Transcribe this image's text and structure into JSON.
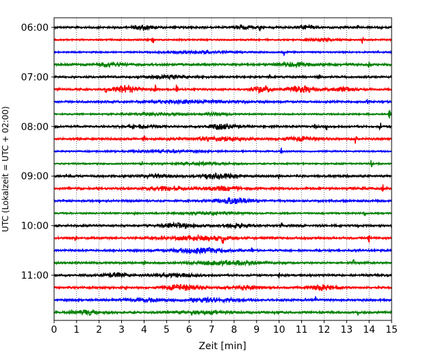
{
  "chart_data": {
    "type": "line",
    "xlabel": "Zeit  [min]",
    "ylabel": "UTC (Lokalzeit = UTC + 02:00)",
    "xlim": [
      0,
      15
    ],
    "x_ticks": [
      "0",
      "1",
      "2",
      "3",
      "4",
      "5",
      "6",
      "7",
      "8",
      "9",
      "10",
      "11",
      "12",
      "13",
      "14",
      "15"
    ],
    "y_tick_labels": [
      "06:00",
      "07:00",
      "08:00",
      "09:00",
      "10:00",
      "11:00"
    ],
    "row_minutes": 15,
    "first_row_time": "06:00",
    "grid": "vertical dotted at each minute",
    "color_cycle": [
      "#000000",
      "#ff0000",
      "#0000ff",
      "#008000"
    ],
    "rows": [
      {
        "time": "06:00",
        "color": "#000000",
        "base": 0.28,
        "bursts": [
          {
            "t": 4.0,
            "a": 0.45,
            "w": 0.6
          },
          {
            "t": 8.5,
            "a": 0.4,
            "w": 0.5
          },
          {
            "t": 11.2,
            "a": 0.45,
            "w": 0.4
          }
        ],
        "spikes": [
          {
            "t": 9.15,
            "a": 1.0
          },
          {
            "t": 13.5,
            "a": 0.7
          }
        ]
      },
      {
        "time": "06:15",
        "color": "#ff0000",
        "base": 0.22,
        "bursts": [
          {
            "t": 12.0,
            "a": 0.3,
            "w": 0.6
          }
        ],
        "spikes": [
          {
            "t": 4.4,
            "a": 1.1
          },
          {
            "t": 13.7,
            "a": 1.0
          }
        ]
      },
      {
        "time": "06:30",
        "color": "#0000ff",
        "base": 0.22,
        "bursts": [
          {
            "t": 6.5,
            "a": 0.25,
            "w": 1.5
          }
        ],
        "spikes": [
          {
            "t": 10.2,
            "a": 1.1
          },
          {
            "t": 14.4,
            "a": 0.6
          }
        ]
      },
      {
        "time": "06:45",
        "color": "#008000",
        "base": 0.3,
        "bursts": [
          {
            "t": 2.5,
            "a": 0.35,
            "w": 0.8
          },
          {
            "t": 10.7,
            "a": 0.45,
            "w": 0.8
          }
        ],
        "spikes": [
          {
            "t": 14.0,
            "a": 1.0
          }
        ]
      },
      {
        "time": "07:00",
        "color": "#000000",
        "base": 0.28,
        "bursts": [
          {
            "t": 5.0,
            "a": 0.3,
            "w": 1.0
          }
        ],
        "spikes": [
          {
            "t": 9.6,
            "a": 0.7
          },
          {
            "t": 11.8,
            "a": 0.8
          }
        ]
      },
      {
        "time": "07:15",
        "color": "#ff0000",
        "base": 0.28,
        "bursts": [
          {
            "t": 3.2,
            "a": 1.0,
            "w": 0.5
          },
          {
            "t": 9.3,
            "a": 0.8,
            "w": 0.4
          },
          {
            "t": 11.0,
            "a": 0.8,
            "w": 0.6
          },
          {
            "t": 12.8,
            "a": 0.45,
            "w": 0.6
          }
        ],
        "spikes": [
          {
            "t": 5.45,
            "a": 1.5
          },
          {
            "t": 4.5,
            "a": 1.0
          },
          {
            "t": 2.3,
            "a": 0.8
          }
        ]
      },
      {
        "time": "07:30",
        "color": "#0000ff",
        "base": 0.28,
        "bursts": [
          {
            "t": 6.0,
            "a": 0.35,
            "w": 1.8
          }
        ],
        "spikes": [
          {
            "t": 13.9,
            "a": 0.9
          }
        ]
      },
      {
        "time": "07:45",
        "color": "#008000",
        "base": 0.22,
        "bursts": [
          {
            "t": 4.5,
            "a": 0.3,
            "w": 1.2
          },
          {
            "t": 7.2,
            "a": 0.3,
            "w": 0.6
          }
        ],
        "spikes": [
          {
            "t": 14.9,
            "a": 1.3
          }
        ]
      },
      {
        "time": "08:00",
        "color": "#000000",
        "base": 0.28,
        "bursts": [
          {
            "t": 7.5,
            "a": 0.7,
            "w": 0.6
          },
          {
            "t": 3.8,
            "a": 0.35,
            "w": 0.8
          }
        ],
        "spikes": [
          {
            "t": 12.1,
            "a": 1.3
          },
          {
            "t": 11.6,
            "a": 0.8
          },
          {
            "t": 14.5,
            "a": 1.0
          }
        ]
      },
      {
        "time": "08:15",
        "color": "#ff0000",
        "base": 0.3,
        "bursts": [
          {
            "t": 7.5,
            "a": 0.4,
            "w": 1.2
          },
          {
            "t": 11.0,
            "a": 0.35,
            "w": 0.8
          }
        ],
        "spikes": [
          {
            "t": 13.4,
            "a": 1.3
          },
          {
            "t": 4.0,
            "a": 0.7
          }
        ]
      },
      {
        "time": "08:30",
        "color": "#0000ff",
        "base": 0.22,
        "bursts": [
          {
            "t": 5.0,
            "a": 0.25,
            "w": 1.5
          }
        ],
        "spikes": [
          {
            "t": 10.1,
            "a": 0.8
          }
        ]
      },
      {
        "time": "08:45",
        "color": "#008000",
        "base": 0.22,
        "bursts": [
          {
            "t": 6.5,
            "a": 0.3,
            "w": 1.0
          }
        ],
        "spikes": [
          {
            "t": 3.9,
            "a": 0.9
          },
          {
            "t": 14.1,
            "a": 1.0
          }
        ]
      },
      {
        "time": "09:00",
        "color": "#000000",
        "base": 0.3,
        "bursts": [
          {
            "t": 7.3,
            "a": 0.6,
            "w": 0.8
          },
          {
            "t": 4.5,
            "a": 0.35,
            "w": 0.8
          }
        ],
        "spikes": [
          {
            "t": 10.0,
            "a": 0.9
          }
        ]
      },
      {
        "time": "09:15",
        "color": "#ff0000",
        "base": 0.3,
        "bursts": [
          {
            "t": 5.0,
            "a": 0.55,
            "w": 0.8
          },
          {
            "t": 7.5,
            "a": 0.45,
            "w": 0.8
          }
        ],
        "spikes": [
          {
            "t": 14.6,
            "a": 1.3
          }
        ]
      },
      {
        "time": "09:30",
        "color": "#0000ff",
        "base": 0.28,
        "bursts": [
          {
            "t": 8.0,
            "a": 0.65,
            "w": 0.8
          }
        ],
        "spikes": [
          {
            "t": 2.0,
            "a": 0.6
          }
        ]
      },
      {
        "time": "09:45",
        "color": "#008000",
        "base": 0.22,
        "bursts": [
          {
            "t": 7.0,
            "a": 0.25,
            "w": 1.5
          }
        ],
        "spikes": [
          {
            "t": 3.6,
            "a": 0.8
          },
          {
            "t": 13.8,
            "a": 0.9
          }
        ]
      },
      {
        "time": "10:00",
        "color": "#000000",
        "base": 0.3,
        "bursts": [
          {
            "t": 5.5,
            "a": 0.55,
            "w": 0.8
          },
          {
            "t": 8.2,
            "a": 0.45,
            "w": 0.6
          }
        ],
        "spikes": [
          {
            "t": 10.1,
            "a": 0.7
          }
        ]
      },
      {
        "time": "10:15",
        "color": "#ff0000",
        "base": 0.3,
        "bursts": [
          {
            "t": 6.5,
            "a": 0.5,
            "w": 1.5
          }
        ],
        "spikes": [
          {
            "t": 7.5,
            "a": 1.2
          },
          {
            "t": 0.95,
            "a": 1.0
          },
          {
            "t": 14.0,
            "a": 1.1
          }
        ]
      },
      {
        "time": "10:30",
        "color": "#0000ff",
        "base": 0.28,
        "bursts": [
          {
            "t": 6.5,
            "a": 0.6,
            "w": 1.2
          }
        ],
        "spikes": [
          {
            "t": 8.8,
            "a": 0.8
          }
        ]
      },
      {
        "time": "10:45",
        "color": "#008000",
        "base": 0.28,
        "bursts": [
          {
            "t": 7.8,
            "a": 0.5,
            "w": 1.5
          }
        ],
        "spikes": [
          {
            "t": 4.0,
            "a": 0.8
          },
          {
            "t": 13.3,
            "a": 1.0
          }
        ]
      },
      {
        "time": "11:00",
        "color": "#000000",
        "base": 0.28,
        "bursts": [
          {
            "t": 2.8,
            "a": 0.55,
            "w": 0.6
          },
          {
            "t": 5.5,
            "a": 0.35,
            "w": 1.0
          }
        ],
        "spikes": [
          {
            "t": 10.0,
            "a": 0.8
          }
        ]
      },
      {
        "time": "11:15",
        "color": "#ff0000",
        "base": 0.28,
        "bursts": [
          {
            "t": 5.8,
            "a": 0.65,
            "w": 0.8
          },
          {
            "t": 12.0,
            "a": 0.65,
            "w": 0.6
          },
          {
            "t": 8.5,
            "a": 0.35,
            "w": 0.8
          }
        ],
        "spikes": [
          {
            "t": 3.2,
            "a": 0.8
          }
        ]
      },
      {
        "time": "11:30",
        "color": "#0000ff",
        "base": 0.3,
        "bursts": [
          {
            "t": 7.0,
            "a": 0.45,
            "w": 1.2
          },
          {
            "t": 4.0,
            "a": 0.3,
            "w": 1.0
          }
        ],
        "spikes": [
          {
            "t": 11.6,
            "a": 1.0
          }
        ]
      },
      {
        "time": "11:45",
        "color": "#008000",
        "base": 0.3,
        "bursts": [
          {
            "t": 1.5,
            "a": 0.5,
            "w": 0.4
          },
          {
            "t": 6.5,
            "a": 0.35,
            "w": 1.2
          }
        ],
        "spikes": [
          {
            "t": 0.75,
            "a": 1.1
          },
          {
            "t": 13.5,
            "a": 0.9
          }
        ]
      }
    ]
  }
}
